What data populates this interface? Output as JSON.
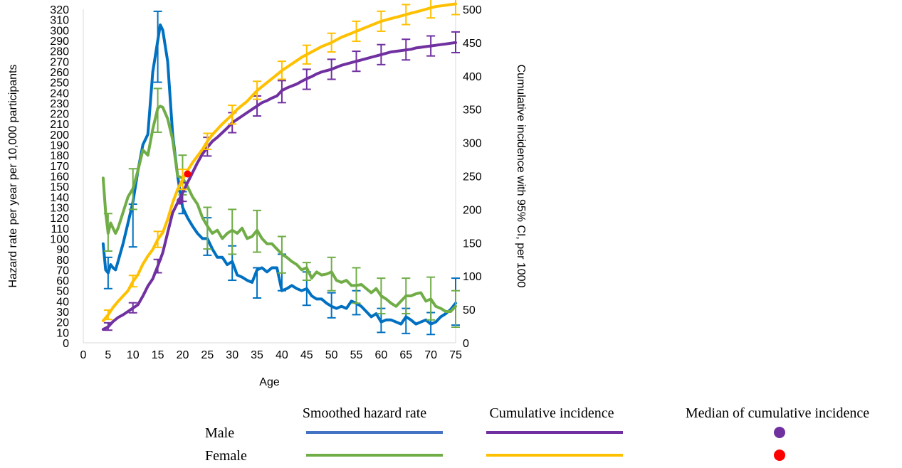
{
  "chart_data": {
    "type": "line",
    "xlabel": "Age",
    "ylabel_left": "Hazard rate per year per 10,000 participants",
    "ylabel_right": "Cumulative incidence with 95% CI, per 1000",
    "xlim": [
      0,
      75
    ],
    "xticks": [
      0,
      5,
      10,
      15,
      20,
      25,
      30,
      35,
      40,
      45,
      50,
      55,
      60,
      65,
      70,
      75
    ],
    "ylim_left": [
      0,
      320
    ],
    "ytick_step_left": 10,
    "ylim_right": [
      0,
      500
    ],
    "yticks_right": [
      0,
      50,
      100,
      150,
      200,
      250,
      300,
      350,
      400,
      450,
      500
    ],
    "grid": false,
    "legend_position": "bottom",
    "legend": {
      "columns": [
        "Smoothed hazard rate",
        "Cumulative incidence",
        "Median of cumulative incidence"
      ],
      "rows": [
        "Male",
        "Female"
      ]
    },
    "colors": {
      "male_hazard": "#0070C0",
      "female_hazard": "#70AD47",
      "male_cumulative": "#7030A0",
      "female_cumulative": "#FFC000",
      "male_median": "#7030A0",
      "female_median": "#FF0000",
      "legend_male_hazard": "#4472C4"
    },
    "series": [
      {
        "legend_column": "Smoothed hazard rate",
        "legend_row": "Male",
        "axis": "left",
        "color_key": "male_hazard",
        "x": [
          4,
          4.5,
          5,
          5.5,
          6,
          6.5,
          7,
          8,
          9,
          10,
          11,
          12,
          13,
          14,
          15,
          15.5,
          16,
          17,
          18,
          19,
          20,
          21,
          22,
          23,
          24,
          25,
          26,
          27,
          28,
          29,
          30,
          31,
          32,
          33,
          34,
          35,
          36,
          37,
          38,
          39,
          40,
          41,
          42,
          43,
          44,
          45,
          46,
          47,
          48,
          49,
          50,
          51,
          52,
          53,
          54,
          55,
          56,
          57,
          58,
          59,
          60,
          61,
          62,
          63,
          64,
          65,
          66,
          67,
          68,
          69,
          70,
          71,
          72,
          73,
          74,
          75
        ],
        "y": [
          95,
          70,
          67,
          75,
          72,
          70,
          78,
          95,
          115,
          135,
          165,
          190,
          200,
          260,
          290,
          305,
          300,
          270,
          200,
          160,
          130,
          120,
          112,
          105,
          100,
          100,
          90,
          82,
          82,
          75,
          78,
          65,
          63,
          60,
          58,
          70,
          72,
          68,
          72,
          72,
          50,
          52,
          55,
          52,
          50,
          52,
          45,
          42,
          42,
          38,
          35,
          33,
          35,
          33,
          40,
          38,
          35,
          30,
          25,
          28,
          20,
          22,
          22,
          20,
          18,
          25,
          22,
          18,
          20,
          22,
          18,
          20,
          25,
          28,
          32,
          38
        ],
        "errorbars": [
          {
            "x": 5,
            "y": 67,
            "lo": 52,
            "hi": 82
          },
          {
            "x": 10,
            "y": 110,
            "lo": 92,
            "hi": 133
          },
          {
            "x": 15,
            "y": 290,
            "lo": 250,
            "hi": 318
          },
          {
            "x": 20,
            "y": 135,
            "lo": 124,
            "hi": 145
          },
          {
            "x": 25,
            "y": 100,
            "lo": 84,
            "hi": 120
          },
          {
            "x": 30,
            "y": 78,
            "lo": 60,
            "hi": 93
          },
          {
            "x": 35,
            "y": 58,
            "lo": 43,
            "hi": 72
          },
          {
            "x": 40,
            "y": 65,
            "lo": 50,
            "hi": 85
          },
          {
            "x": 45,
            "y": 52,
            "lo": 36,
            "hi": 68
          },
          {
            "x": 50,
            "y": 35,
            "lo": 24,
            "hi": 48
          },
          {
            "x": 55,
            "y": 38,
            "lo": 27,
            "hi": 50
          },
          {
            "x": 60,
            "y": 22,
            "lo": 10,
            "hi": 33
          },
          {
            "x": 65,
            "y": 20,
            "lo": 9,
            "hi": 33
          },
          {
            "x": 70,
            "y": 18,
            "lo": 8,
            "hi": 29
          },
          {
            "x": 75,
            "y": 38,
            "lo": 17,
            "hi": 62
          }
        ]
      },
      {
        "legend_column": "Smoothed hazard rate",
        "legend_row": "Female",
        "axis": "left",
        "color_key": "female_hazard",
        "x": [
          4,
          4.5,
          5,
          5.5,
          6,
          6.5,
          7,
          8,
          9,
          10,
          11,
          12,
          13,
          14,
          15,
          15.5,
          16,
          17,
          18,
          19,
          20,
          21,
          22,
          23,
          24,
          25,
          26,
          27,
          28,
          29,
          30,
          31,
          32,
          33,
          34,
          35,
          36,
          37,
          38,
          39,
          40,
          41,
          42,
          43,
          44,
          45,
          46,
          47,
          48,
          49,
          50,
          51,
          52,
          53,
          54,
          55,
          56,
          57,
          58,
          59,
          60,
          61,
          62,
          63,
          64,
          65,
          66,
          67,
          68,
          69,
          70,
          71,
          72,
          73,
          74,
          75
        ],
        "y": [
          158,
          125,
          105,
          115,
          110,
          105,
          110,
          125,
          140,
          148,
          165,
          185,
          180,
          205,
          225,
          227,
          226,
          215,
          195,
          160,
          158,
          150,
          140,
          133,
          120,
          112,
          105,
          108,
          100,
          105,
          108,
          105,
          110,
          100,
          102,
          108,
          100,
          95,
          95,
          90,
          85,
          82,
          78,
          75,
          70,
          72,
          62,
          68,
          65,
          66,
          68,
          60,
          58,
          60,
          55,
          55,
          56,
          52,
          48,
          52,
          45,
          42,
          38,
          35,
          40,
          45,
          45,
          47,
          48,
          40,
          42,
          35,
          33,
          30,
          30,
          35
        ],
        "errorbars": [
          {
            "x": 5,
            "y": 105,
            "lo": 88,
            "hi": 124
          },
          {
            "x": 10,
            "y": 148,
            "lo": 128,
            "hi": 167
          },
          {
            "x": 15,
            "y": 225,
            "lo": 202,
            "hi": 244
          },
          {
            "x": 20,
            "y": 158,
            "lo": 142,
            "hi": 180
          },
          {
            "x": 25,
            "y": 112,
            "lo": 90,
            "hi": 130
          },
          {
            "x": 30,
            "y": 108,
            "lo": 85,
            "hi": 128
          },
          {
            "x": 35,
            "y": 108,
            "lo": 87,
            "hi": 127
          },
          {
            "x": 40,
            "y": 85,
            "lo": 67,
            "hi": 102
          },
          {
            "x": 45,
            "y": 72,
            "lo": 60,
            "hi": 77
          },
          {
            "x": 50,
            "y": 68,
            "lo": 50,
            "hi": 82
          },
          {
            "x": 55,
            "y": 55,
            "lo": 38,
            "hi": 72
          },
          {
            "x": 60,
            "y": 45,
            "lo": 28,
            "hi": 62
          },
          {
            "x": 65,
            "y": 45,
            "lo": 28,
            "hi": 62
          },
          {
            "x": 70,
            "y": 42,
            "lo": 22,
            "hi": 63
          },
          {
            "x": 75,
            "y": 35,
            "lo": 15,
            "hi": 50
          }
        ]
      },
      {
        "legend_column": "Cumulative incidence",
        "legend_row": "Male",
        "axis": "right",
        "color_key": "male_cumulative",
        "x": [
          4,
          5,
          6,
          7,
          8,
          9,
          10,
          11,
          12,
          13,
          14,
          15,
          16,
          17,
          18,
          19,
          20,
          21,
          22,
          23,
          24,
          25,
          26,
          27,
          28,
          29,
          30,
          31,
          32,
          33,
          34,
          35,
          36,
          37,
          38,
          39,
          40,
          41,
          42,
          43,
          44,
          45,
          46,
          47,
          48,
          49,
          50,
          51,
          52,
          53,
          54,
          55,
          56,
          57,
          58,
          59,
          60,
          61,
          62,
          63,
          64,
          65,
          66,
          67,
          68,
          69,
          70,
          71,
          72,
          73,
          74,
          75
        ],
        "y": [
          20,
          24,
          32,
          38,
          42,
          47,
          52,
          57,
          70,
          85,
          96,
          115,
          135,
          165,
          195,
          210,
          225,
          240,
          255,
          270,
          283,
          293,
          302,
          308,
          315,
          322,
          330,
          335,
          340,
          345,
          350,
          355,
          360,
          363,
          367,
          370,
          378,
          382,
          385,
          388,
          392,
          396,
          399,
          403,
          406,
          408,
          410,
          413,
          416,
          418,
          420,
          422,
          424,
          426,
          428,
          430,
          432,
          434,
          436,
          437,
          438,
          439,
          440,
          442,
          443,
          444,
          445,
          446,
          447,
          448,
          449,
          450
        ],
        "errorbars": [
          {
            "x": 5,
            "y": 24,
            "lo": 19,
            "hi": 30
          },
          {
            "x": 10,
            "y": 52,
            "lo": 45,
            "hi": 60
          },
          {
            "x": 15,
            "y": 115,
            "lo": 105,
            "hi": 125
          },
          {
            "x": 20,
            "y": 225,
            "lo": 212,
            "hi": 240
          },
          {
            "x": 25,
            "y": 293,
            "lo": 280,
            "hi": 308
          },
          {
            "x": 30,
            "y": 330,
            "lo": 315,
            "hi": 345
          },
          {
            "x": 35,
            "y": 355,
            "lo": 340,
            "hi": 370
          },
          {
            "x": 40,
            "y": 378,
            "lo": 360,
            "hi": 393
          },
          {
            "x": 45,
            "y": 396,
            "lo": 380,
            "hi": 410
          },
          {
            "x": 50,
            "y": 410,
            "lo": 395,
            "hi": 425
          },
          {
            "x": 55,
            "y": 422,
            "lo": 407,
            "hi": 437
          },
          {
            "x": 60,
            "y": 432,
            "lo": 417,
            "hi": 447
          },
          {
            "x": 65,
            "y": 439,
            "lo": 424,
            "hi": 455
          },
          {
            "x": 70,
            "y": 445,
            "lo": 430,
            "hi": 460
          },
          {
            "x": 75,
            "y": 450,
            "lo": 435,
            "hi": 466
          }
        ]
      },
      {
        "legend_column": "Cumulative incidence",
        "legend_row": "Female",
        "axis": "right",
        "color_key": "female_cumulative",
        "x": [
          4,
          5,
          6,
          7,
          8,
          9,
          10,
          11,
          12,
          13,
          14,
          15,
          16,
          17,
          18,
          19,
          20,
          21,
          22,
          23,
          24,
          25,
          26,
          27,
          28,
          29,
          30,
          31,
          32,
          33,
          34,
          35,
          36,
          37,
          38,
          39,
          40,
          41,
          42,
          43,
          44,
          45,
          46,
          47,
          48,
          49,
          50,
          51,
          52,
          53,
          54,
          55,
          56,
          57,
          58,
          59,
          60,
          61,
          62,
          63,
          64,
          65,
          66,
          67,
          68,
          69,
          70,
          71,
          72,
          73,
          74,
          75
        ],
        "y": [
          33,
          42,
          53,
          62,
          70,
          78,
          92,
          102,
          118,
          130,
          140,
          155,
          165,
          185,
          210,
          230,
          245,
          258,
          270,
          280,
          290,
          302,
          312,
          320,
          328,
          335,
          342,
          350,
          356,
          362,
          370,
          378,
          384,
          390,
          396,
          402,
          408,
          413,
          418,
          423,
          428,
          432,
          436,
          440,
          444,
          447,
          450,
          454,
          458,
          461,
          464,
          467,
          470,
          473,
          476,
          479,
          482,
          484,
          486,
          488,
          490,
          492,
          494,
          496,
          498,
          500,
          502,
          504,
          505,
          506,
          507,
          508
        ],
        "errorbars": [
          {
            "x": 5,
            "y": 42,
            "lo": 35,
            "hi": 49
          },
          {
            "x": 10,
            "y": 92,
            "lo": 84,
            "hi": 101
          },
          {
            "x": 15,
            "y": 155,
            "lo": 143,
            "hi": 167
          },
          {
            "x": 20,
            "y": 245,
            "lo": 230,
            "hi": 260
          },
          {
            "x": 25,
            "y": 302,
            "lo": 290,
            "hi": 314
          },
          {
            "x": 30,
            "y": 342,
            "lo": 328,
            "hi": 356
          },
          {
            "x": 35,
            "y": 378,
            "lo": 365,
            "hi": 392
          },
          {
            "x": 40,
            "y": 408,
            "lo": 395,
            "hi": 422
          },
          {
            "x": 45,
            "y": 432,
            "lo": 418,
            "hi": 446
          },
          {
            "x": 50,
            "y": 450,
            "lo": 436,
            "hi": 464
          },
          {
            "x": 55,
            "y": 467,
            "lo": 452,
            "hi": 482
          },
          {
            "x": 60,
            "y": 482,
            "lo": 467,
            "hi": 497
          },
          {
            "x": 65,
            "y": 492,
            "lo": 477,
            "hi": 507
          },
          {
            "x": 70,
            "y": 502,
            "lo": 487,
            "hi": 517
          },
          {
            "x": 75,
            "y": 508,
            "lo": 492,
            "hi": 525
          }
        ]
      }
    ],
    "medians": [
      {
        "legend_column": "Median of cumulative incidence",
        "legend_row": "Male",
        "x": 19.5,
        "y_left": 136,
        "color_key": "male_median"
      },
      {
        "legend_column": "Median of cumulative incidence",
        "legend_row": "Female",
        "x": 21,
        "y_left": 162,
        "color_key": "female_median"
      }
    ]
  }
}
